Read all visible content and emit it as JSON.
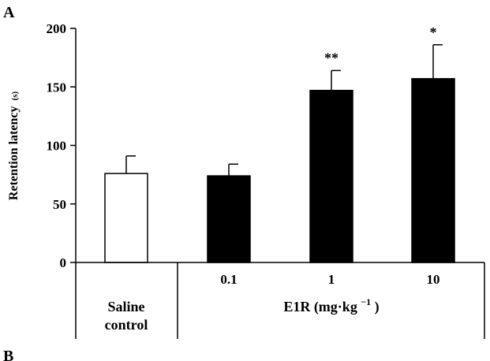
{
  "panel_label": "A",
  "next_panel_label": "B",
  "chart_data": {
    "type": "bar",
    "categories": [
      "Saline control",
      "0.1",
      "1",
      "10"
    ],
    "values": [
      76,
      74,
      147,
      157
    ],
    "errors": [
      15,
      10,
      17,
      29
    ],
    "significance": [
      "",
      "",
      "**",
      "*"
    ],
    "bar_colors": [
      "#ffffff",
      "#000000",
      "#000000",
      "#000000"
    ],
    "ylabel": "Retention latency",
    "ylabel_unit": "(s)",
    "ylim": [
      0,
      200
    ],
    "yticks": [
      "0",
      "50",
      "100",
      "150",
      "200"
    ],
    "group_label_main": "E1R (mg·kg",
    "group_label_sup": "−1",
    "group_label_end": ")",
    "saline_label_line1": "Saline",
    "saline_label_line2": "control",
    "grid": false
  }
}
